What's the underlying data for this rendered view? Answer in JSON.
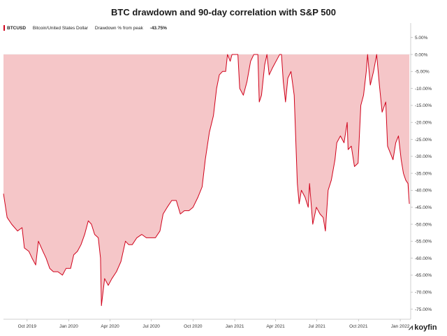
{
  "chart_data": {
    "type": "area",
    "title": "BTC drawdown and 90-day correlation with S&P 500",
    "legend": {
      "symbol": "BTCUSD",
      "name": "Bitcoin/United States Dollar",
      "metric": "Drawdown % from peak",
      "value": "-43.75%"
    },
    "ylim": [
      -77.5,
      7.5
    ],
    "y_ticks": [
      "5.00%",
      "0.00%",
      "-5.00%",
      "-10.00%",
      "-15.00%",
      "-20.00%",
      "-25.00%",
      "-30.00%",
      "-35.00%",
      "-40.00%",
      "-45.00%",
      "-50.00%",
      "-55.00%",
      "-60.00%",
      "-65.00%",
      "-70.00%",
      "-75.00%"
    ],
    "y_tick_values": [
      5,
      0,
      -5,
      -10,
      -15,
      -20,
      -25,
      -30,
      -35,
      -40,
      -45,
      -50,
      -55,
      -60,
      -65,
      -70,
      -75
    ],
    "x_ticks": [
      "Oct 2019",
      "Jan 2020",
      "Apr 2020",
      "Jul 2020",
      "Oct 2020",
      "Jan 2021",
      "Apr 2021",
      "Jul 2021",
      "Oct 2021",
      "Jan 2022"
    ],
    "x_tick_dates": [
      "2019-10-01",
      "2020-01-01",
      "2020-04-01",
      "2020-07-01",
      "2020-10-01",
      "2021-01-01",
      "2021-04-01",
      "2021-07-01",
      "2021-10-01",
      "2022-01-01"
    ],
    "x_range": [
      "2019-08-10",
      "2022-01-24"
    ],
    "series": [
      {
        "name": "BTCUSD",
        "color": "#d0021b",
        "fill": "#f5c6c8",
        "points": [
          [
            "2019-08-10",
            -41
          ],
          [
            "2019-08-18",
            -48
          ],
          [
            "2019-08-28",
            -50
          ],
          [
            "2019-09-10",
            -52
          ],
          [
            "2019-09-20",
            -51
          ],
          [
            "2019-09-25",
            -57
          ],
          [
            "2019-10-05",
            -58
          ],
          [
            "2019-10-12",
            -60
          ],
          [
            "2019-10-20",
            -62
          ],
          [
            "2019-10-26",
            -55
          ],
          [
            "2019-11-05",
            -58
          ],
          [
            "2019-11-12",
            -60
          ],
          [
            "2019-11-20",
            -63
          ],
          [
            "2019-11-28",
            -64
          ],
          [
            "2019-12-08",
            -64
          ],
          [
            "2019-12-18",
            -65
          ],
          [
            "2019-12-26",
            -63
          ],
          [
            "2020-01-05",
            -63
          ],
          [
            "2020-01-12",
            -59
          ],
          [
            "2020-01-20",
            -58
          ],
          [
            "2020-01-28",
            -56
          ],
          [
            "2020-02-05",
            -53
          ],
          [
            "2020-02-13",
            -49
          ],
          [
            "2020-02-20",
            -50
          ],
          [
            "2020-02-27",
            -53
          ],
          [
            "2020-03-06",
            -54
          ],
          [
            "2020-03-11",
            -60
          ],
          [
            "2020-03-13",
            -74
          ],
          [
            "2020-03-20",
            -66
          ],
          [
            "2020-03-28",
            -68
          ],
          [
            "2020-04-05",
            -66
          ],
          [
            "2020-04-15",
            -64
          ],
          [
            "2020-04-25",
            -61
          ],
          [
            "2020-05-05",
            -55
          ],
          [
            "2020-05-12",
            -56
          ],
          [
            "2020-05-20",
            -56
          ],
          [
            "2020-05-30",
            -54
          ],
          [
            "2020-06-10",
            -53
          ],
          [
            "2020-06-20",
            -54
          ],
          [
            "2020-06-30",
            -54
          ],
          [
            "2020-07-10",
            -54
          ],
          [
            "2020-07-20",
            -52
          ],
          [
            "2020-07-27",
            -47
          ],
          [
            "2020-08-05",
            -45
          ],
          [
            "2020-08-15",
            -43
          ],
          [
            "2020-08-25",
            -43
          ],
          [
            "2020-09-03",
            -47
          ],
          [
            "2020-09-12",
            -46
          ],
          [
            "2020-09-22",
            -46
          ],
          [
            "2020-10-01",
            -45
          ],
          [
            "2020-10-12",
            -42
          ],
          [
            "2020-10-21",
            -39
          ],
          [
            "2020-10-28",
            -31
          ],
          [
            "2020-11-06",
            -23
          ],
          [
            "2020-11-15",
            -18
          ],
          [
            "2020-11-22",
            -10
          ],
          [
            "2020-11-28",
            -6
          ],
          [
            "2020-12-05",
            -5
          ],
          [
            "2020-12-12",
            -5
          ],
          [
            "2020-12-16",
            0
          ],
          [
            "2020-12-22",
            -2
          ],
          [
            "2020-12-26",
            0
          ],
          [
            "2021-01-02",
            0
          ],
          [
            "2021-01-08",
            0
          ],
          [
            "2021-01-12",
            -10
          ],
          [
            "2021-01-20",
            -12
          ],
          [
            "2021-01-28",
            -8
          ],
          [
            "2021-02-05",
            -2
          ],
          [
            "2021-02-12",
            0
          ],
          [
            "2021-02-21",
            0
          ],
          [
            "2021-02-24",
            -14
          ],
          [
            "2021-03-01",
            -12
          ],
          [
            "2021-03-08",
            -3
          ],
          [
            "2021-03-13",
            0
          ],
          [
            "2021-03-18",
            -6
          ],
          [
            "2021-03-25",
            -4
          ],
          [
            "2021-04-02",
            -2
          ],
          [
            "2021-04-10",
            0
          ],
          [
            "2021-04-14",
            0
          ],
          [
            "2021-04-18",
            -8
          ],
          [
            "2021-04-23",
            -14
          ],
          [
            "2021-04-28",
            -7
          ],
          [
            "2021-05-05",
            -5
          ],
          [
            "2021-05-12",
            -12
          ],
          [
            "2021-05-19",
            -38
          ],
          [
            "2021-05-23",
            -44
          ],
          [
            "2021-05-28",
            -40
          ],
          [
            "2021-06-05",
            -42
          ],
          [
            "2021-06-12",
            -45
          ],
          [
            "2021-06-15",
            -38
          ],
          [
            "2021-06-22",
            -50
          ],
          [
            "2021-06-30",
            -45
          ],
          [
            "2021-07-08",
            -47
          ],
          [
            "2021-07-15",
            -48
          ],
          [
            "2021-07-20",
            -52
          ],
          [
            "2021-07-26",
            -40
          ],
          [
            "2021-08-02",
            -37
          ],
          [
            "2021-08-10",
            -31
          ],
          [
            "2021-08-14",
            -26
          ],
          [
            "2021-08-22",
            -24
          ],
          [
            "2021-08-30",
            -26
          ],
          [
            "2021-09-06",
            -20
          ],
          [
            "2021-09-08",
            -28
          ],
          [
            "2021-09-15",
            -27
          ],
          [
            "2021-09-22",
            -33
          ],
          [
            "2021-09-30",
            -32
          ],
          [
            "2021-10-06",
            -15
          ],
          [
            "2021-10-12",
            -12
          ],
          [
            "2021-10-18",
            -5
          ],
          [
            "2021-10-21",
            0
          ],
          [
            "2021-10-27",
            -9
          ],
          [
            "2021-11-03",
            -5
          ],
          [
            "2021-11-10",
            0
          ],
          [
            "2021-11-16",
            -9
          ],
          [
            "2021-11-22",
            -17
          ],
          [
            "2021-11-30",
            -14
          ],
          [
            "2021-12-04",
            -27
          ],
          [
            "2021-12-10",
            -29
          ],
          [
            "2021-12-16",
            -31
          ],
          [
            "2021-12-22",
            -26
          ],
          [
            "2021-12-28",
            -24
          ],
          [
            "2022-01-03",
            -31
          ],
          [
            "2022-01-08",
            -35
          ],
          [
            "2022-01-13",
            -37
          ],
          [
            "2022-01-18",
            -38
          ],
          [
            "2022-01-21",
            -44
          ]
        ]
      }
    ]
  },
  "brand": {
    "name": "koyfin"
  }
}
